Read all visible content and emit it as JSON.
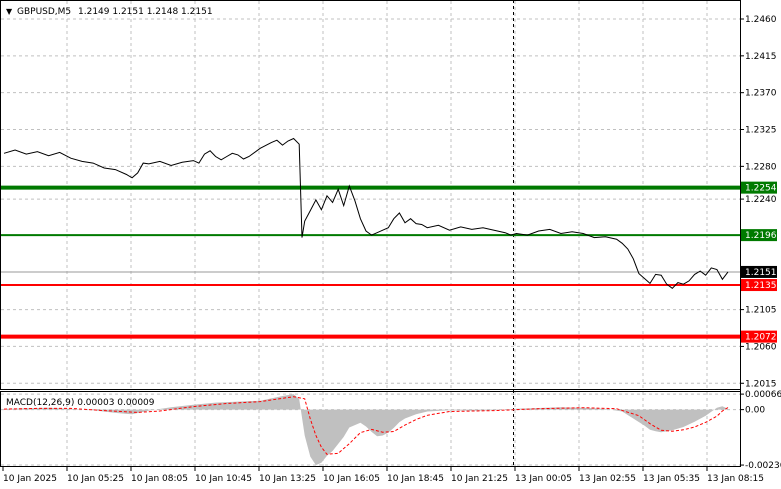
{
  "header": {
    "symbol_label": "GBPUSD,M5",
    "ohlc_text": "1.2149 1.2151 1.2148 1.2151",
    "dropdown_glyph": "▼"
  },
  "colors": {
    "price_line": "#000000",
    "grid": "#c0c0c0",
    "support_level": "#007a00",
    "resistance_level": "#ff0000",
    "macd_histogram": "#c0c0c0",
    "macd_signal": "#ff0000",
    "current_price_tag": "#000000"
  },
  "main_panel": {
    "price_axis_labels": [
      "1.2460",
      "1.2415",
      "1.2370",
      "1.2325",
      "1.2280",
      "1.2240",
      "1.2196",
      "1.2151",
      "1.2105",
      "1.2060",
      "1.2015"
    ],
    "levels": [
      {
        "value": 1.2254,
        "label": "1.2254",
        "kind": "support",
        "weight": "thick"
      },
      {
        "value": 1.2196,
        "label": "1.2196",
        "kind": "support",
        "weight": "thin"
      },
      {
        "value": 1.2135,
        "label": "1.2135",
        "kind": "resistance",
        "weight": "thin"
      },
      {
        "value": 1.2072,
        "label": "1.2072",
        "kind": "resistance",
        "weight": "thick"
      }
    ],
    "current_price": {
      "value": 1.2151,
      "label": "1.2151"
    }
  },
  "macd_panel": {
    "label": "MACD(12,26,9) 0.00003 0.00009",
    "axis_labels": [
      "0.00066",
      "0.00",
      "-0.00236"
    ]
  },
  "time_axis_labels": [
    "10 Jan 2025",
    "10 Jan 05:25",
    "10 Jan 08:05",
    "10 Jan 10:45",
    "10 Jan 13:25",
    "10 Jan 16:05",
    "10 Jan 18:45",
    "10 Jan 21:25",
    "13 Jan 00:05",
    "13 Jan 02:55",
    "13 Jan 05:35",
    "13 Jan 08:15"
  ],
  "chart_data": [
    {
      "type": "line",
      "title": "GBPUSD,M5",
      "ylim": [
        1.2008,
        1.2482
      ],
      "x": [
        "10 Jan 2025",
        "10 Jan 05:25",
        "10 Jan 08:05",
        "10 Jan 10:45",
        "10 Jan 13:25",
        "10 Jan 16:05",
        "10 Jan 18:45",
        "10 Jan 21:25",
        "13 Jan 00:05",
        "13 Jan 02:55",
        "13 Jan 05:35",
        "13 Jan 08:15"
      ],
      "series": [
        {
          "values": [
            [
              0,
              1.2296
            ],
            [
              2,
              1.23
            ],
            [
              4,
              1.2295
            ],
            [
              6,
              1.2298
            ],
            [
              8,
              1.2293
            ],
            [
              10,
              1.2297
            ],
            [
              12,
              1.229
            ],
            [
              14,
              1.2286
            ],
            [
              16,
              1.2284
            ],
            [
              18,
              1.2278
            ],
            [
              20,
              1.2276
            ],
            [
              22,
              1.227
            ],
            [
              23,
              1.2266
            ],
            [
              24,
              1.2272
            ],
            [
              25,
              1.2284
            ],
            [
              26,
              1.2283
            ],
            [
              28,
              1.2286
            ],
            [
              30,
              1.2281
            ],
            [
              32,
              1.2285
            ],
            [
              34,
              1.2287
            ],
            [
              35,
              1.2284
            ],
            [
              36,
              1.2295
            ],
            [
              37,
              1.2299
            ],
            [
              38,
              1.2292
            ],
            [
              39,
              1.2288
            ],
            [
              40,
              1.2292
            ],
            [
              41,
              1.2296
            ],
            [
              42,
              1.2294
            ],
            [
              43,
              1.2289
            ],
            [
              44,
              1.2292
            ],
            [
              46,
              1.2302
            ],
            [
              48,
              1.2309
            ],
            [
              49,
              1.2312
            ],
            [
              50,
              1.2306
            ],
            [
              51,
              1.2311
            ],
            [
              52,
              1.2314
            ],
            [
              53,
              1.2307
            ],
            [
              53.5,
              1.2193
            ],
            [
              54,
              1.2213
            ],
            [
              55,
              1.2226
            ],
            [
              56,
              1.2239
            ],
            [
              57,
              1.2227
            ],
            [
              58,
              1.2244
            ],
            [
              59,
              1.2236
            ],
            [
              60,
              1.2252
            ],
            [
              61,
              1.2232
            ],
            [
              62,
              1.2256
            ],
            [
              63,
              1.2238
            ],
            [
              64,
              1.2216
            ],
            [
              65,
              1.2201
            ],
            [
              66,
              1.2196
            ],
            [
              67,
              1.2199
            ],
            [
              68,
              1.2202
            ],
            [
              69,
              1.2205
            ],
            [
              70,
              1.2216
            ],
            [
              71,
              1.2223
            ],
            [
              72,
              1.2211
            ],
            [
              73,
              1.2216
            ],
            [
              74,
              1.221
            ],
            [
              75,
              1.2209
            ],
            [
              76,
              1.2205
            ],
            [
              78,
              1.2208
            ],
            [
              80,
              1.2202
            ],
            [
              82,
              1.2206
            ],
            [
              84,
              1.2203
            ],
            [
              86,
              1.2205
            ],
            [
              88,
              1.2202
            ],
            [
              90,
              1.2199
            ],
            [
              91,
              1.2196
            ],
            [
              92,
              1.2198
            ],
            [
              94,
              1.2196
            ],
            [
              96,
              1.2201
            ],
            [
              98,
              1.2203
            ],
            [
              100,
              1.2198
            ],
            [
              102,
              1.22
            ],
            [
              104,
              1.2198
            ],
            [
              106,
              1.2193
            ],
            [
              108,
              1.2194
            ],
            [
              110,
              1.2191
            ],
            [
              111,
              1.2186
            ],
            [
              112,
              1.2179
            ],
            [
              113,
              1.2167
            ],
            [
              114,
              1.2149
            ],
            [
              115,
              1.2143
            ],
            [
              116,
              1.2137
            ],
            [
              117,
              1.2148
            ],
            [
              118,
              1.2147
            ],
            [
              119,
              1.2136
            ],
            [
              120,
              1.2131
            ],
            [
              121,
              1.2138
            ],
            [
              122,
              1.2136
            ],
            [
              123,
              1.214
            ],
            [
              124,
              1.2148
            ],
            [
              125,
              1.2152
            ],
            [
              126,
              1.2147
            ],
            [
              127,
              1.2156
            ],
            [
              128,
              1.2154
            ],
            [
              129,
              1.2142
            ],
            [
              130,
              1.2151
            ]
          ]
        }
      ]
    },
    {
      "type": "bar",
      "title": "MACD(12,26,9) 0.00003 0.00009",
      "ylim": [
        -0.0024,
        0.00075
      ],
      "series": [
        {
          "name": "MACD",
          "values": [
            [
              0,
              3e-05
            ],
            [
              4,
              6e-05
            ],
            [
              8,
              8e-05
            ],
            [
              12,
              4e-05
            ],
            [
              16,
              -3e-05
            ],
            [
              20,
              -0.00014
            ],
            [
              23,
              -0.0002
            ],
            [
              26,
              -4e-05
            ],
            [
              30,
              0.0001
            ],
            [
              34,
              0.00021
            ],
            [
              38,
              0.0003
            ],
            [
              42,
              0.00034
            ],
            [
              46,
              0.00038
            ],
            [
              50,
              0.00058
            ],
            [
              52,
              0.00066
            ],
            [
              53,
              0.00045
            ],
            [
              54,
              -0.0011
            ],
            [
              55,
              -0.002
            ],
            [
              56,
              -0.00236
            ],
            [
              57,
              -0.00226
            ],
            [
              58,
              -0.00196
            ],
            [
              59,
              -0.00176
            ],
            [
              60,
              -0.00146
            ],
            [
              61,
              -0.00116
            ],
            [
              62,
              -0.00076
            ],
            [
              64,
              -0.00056
            ],
            [
              65,
              -0.00072
            ],
            [
              66,
              -0.00095
            ],
            [
              67,
              -0.00113
            ],
            [
              68,
              -0.0011
            ],
            [
              69,
              -0.00098
            ],
            [
              70,
              -0.00078
            ],
            [
              71,
              -0.00053
            ],
            [
              72,
              -0.00038
            ],
            [
              74,
              -0.0002
            ],
            [
              76,
              -8e-05
            ],
            [
              80,
              -3e-05
            ],
            [
              84,
              -5e-05
            ],
            [
              88,
              -3e-05
            ],
            [
              92,
              4e-05
            ],
            [
              96,
              7e-05
            ],
            [
              100,
              0.0001
            ],
            [
              104,
              8e-05
            ],
            [
              108,
              3e-05
            ],
            [
              111,
              -8e-05
            ],
            [
              113,
              -0.00038
            ],
            [
              115,
              -0.00068
            ],
            [
              116,
              -0.00086
            ],
            [
              117,
              -0.00092
            ],
            [
              118,
              -0.00096
            ],
            [
              120,
              -0.00088
            ],
            [
              122,
              -0.00074
            ],
            [
              124,
              -0.00052
            ],
            [
              126,
              -0.00026
            ],
            [
              128,
              8e-05
            ],
            [
              129,
              0.00014
            ],
            [
              130,
              3e-05
            ]
          ]
        },
        {
          "name": "Signal",
          "values": [
            [
              0,
              2e-05
            ],
            [
              6,
              5e-05
            ],
            [
              12,
              5e-05
            ],
            [
              18,
              -4e-05
            ],
            [
              24,
              -0.00012
            ],
            [
              28,
              -6e-05
            ],
            [
              34,
              0.00013
            ],
            [
              40,
              0.00026
            ],
            [
              46,
              0.00034
            ],
            [
              52,
              0.00055
            ],
            [
              54,
              0.00046
            ],
            [
              55,
              -0.0004
            ],
            [
              56,
              -0.0011
            ],
            [
              57,
              -0.0016
            ],
            [
              58,
              -0.0019
            ],
            [
              60,
              -0.00186
            ],
            [
              62,
              -0.00145
            ],
            [
              64,
              -0.00098
            ],
            [
              66,
              -0.00084
            ],
            [
              68,
              -0.00096
            ],
            [
              70,
              -0.00093
            ],
            [
              72,
              -0.00066
            ],
            [
              74,
              -0.00042
            ],
            [
              76,
              -0.00024
            ],
            [
              80,
              -8e-05
            ],
            [
              88,
              -4e-05
            ],
            [
              96,
              4e-05
            ],
            [
              104,
              8e-05
            ],
            [
              110,
              4e-05
            ],
            [
              114,
              -0.00026
            ],
            [
              116,
              -0.0006
            ],
            [
              118,
              -0.00088
            ],
            [
              120,
              -0.00092
            ],
            [
              122,
              -0.00086
            ],
            [
              124,
              -0.00074
            ],
            [
              126,
              -0.00054
            ],
            [
              128,
              -0.00028
            ],
            [
              129,
              -6e-05
            ],
            [
              130,
              9e-05
            ]
          ]
        }
      ]
    }
  ]
}
